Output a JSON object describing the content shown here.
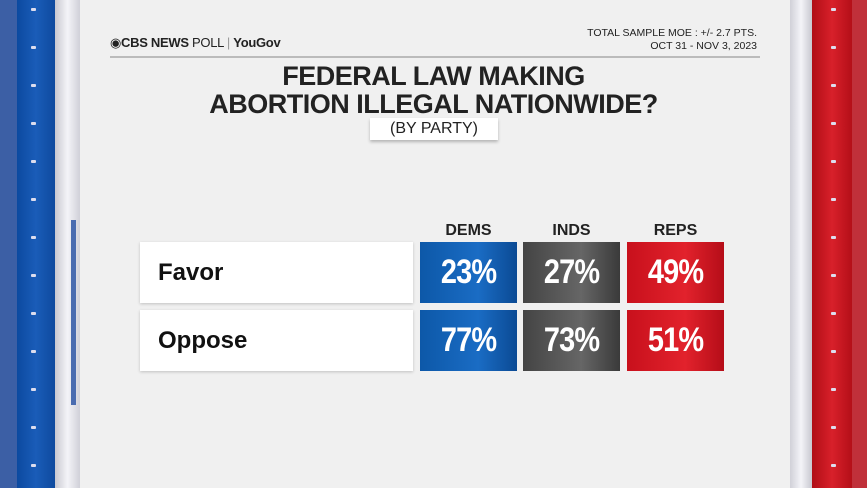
{
  "header": {
    "logo": "CBS NEWS POLL | YouGov",
    "logo_brand": "CBS NEWS",
    "logo_rest": "POLL",
    "logo_partner": "YouGov",
    "moe": "TOTAL SAMPLE MOE : +/- 2.7 PTS.",
    "dates": "OCT 31 - NOV 3, 2023"
  },
  "colors": {
    "dems": "#1565b8",
    "inds": "#555555",
    "reps": "#d81a24"
  },
  "chart_data": {
    "type": "table",
    "title": "FEDERAL LAW MAKING ABORTION ILLEGAL NATIONWIDE?",
    "title_lines": [
      "FEDERAL LAW MAKING",
      "ABORTION ILLEGAL NATIONWIDE?"
    ],
    "subtitle": "(BY PARTY)",
    "columns": [
      "DEMS",
      "INDS",
      "REPS"
    ],
    "rows": [
      {
        "label": "Favor",
        "values": [
          "23%",
          "27%",
          "49%"
        ]
      },
      {
        "label": "Oppose",
        "values": [
          "77%",
          "73%",
          "51%"
        ]
      }
    ]
  }
}
